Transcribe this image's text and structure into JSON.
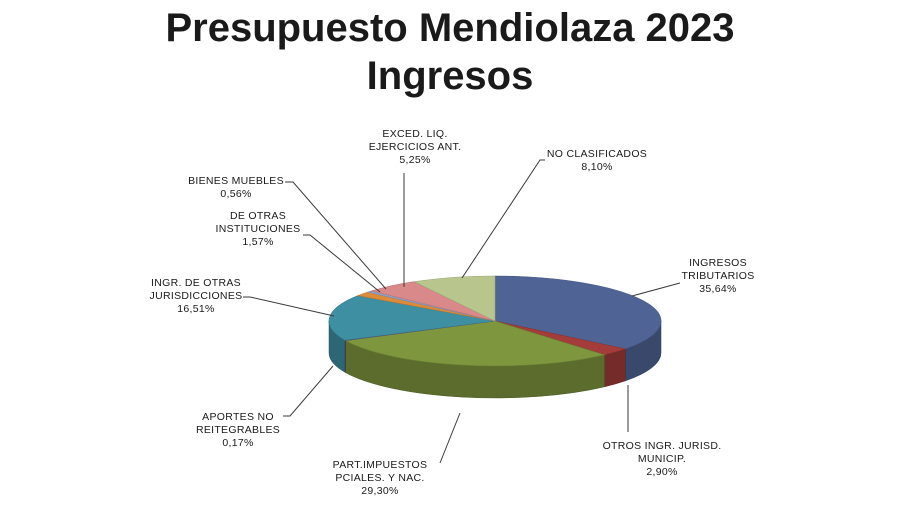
{
  "header": {
    "title": "Presupuesto Mendiolaza 2023",
    "subtitle": "Ingresos"
  },
  "chart_data": {
    "type": "pie",
    "title": "Presupuesto Mendiolaza 2023",
    "subtitle": "Ingresos",
    "style": "3d-pie",
    "slices": [
      {
        "label": [
          "INGRESOS",
          "TRIBUTARIOS"
        ],
        "value": 35.64,
        "value_text": "35,64%",
        "color": "#4F6495"
      },
      {
        "label": [
          "OTROS INGR. JURISD.",
          "MUNICIP."
        ],
        "value": 2.9,
        "value_text": "2,90%",
        "color": "#A33C3A"
      },
      {
        "label": [
          "PART.IMPUESTOS",
          "PCIALES. Y NAC."
        ],
        "value": 29.3,
        "value_text": "29,30%",
        "color": "#7E963D"
      },
      {
        "label": [
          "APORTES  NO",
          "REITEGRABLES"
        ],
        "value": 0.17,
        "value_text": "0,17%",
        "color": "#6C4D8A"
      },
      {
        "label": [
          "INGR. DE OTRAS",
          "JURISDICCIONES"
        ],
        "value": 16.51,
        "value_text": "16,51%",
        "color": "#3F8FA3"
      },
      {
        "label": [
          "DE OTRAS",
          "INSTITUCIONES"
        ],
        "value": 1.57,
        "value_text": "1,57%",
        "color": "#DC8B3B"
      },
      {
        "label": [
          "BIENES MUEBLES"
        ],
        "value": 0.56,
        "value_text": "0,56%",
        "color": "#8FA2CC"
      },
      {
        "label": [
          "EXCED.  LIQ.",
          "EJERCICIOS ANT."
        ],
        "value": 5.25,
        "value_text": "5,25%",
        "color": "#D9898A"
      },
      {
        "label": [
          "NO CLASIFICADOS"
        ],
        "value": 8.1,
        "value_text": "8,10%",
        "color": "#B8C68E"
      }
    ]
  }
}
